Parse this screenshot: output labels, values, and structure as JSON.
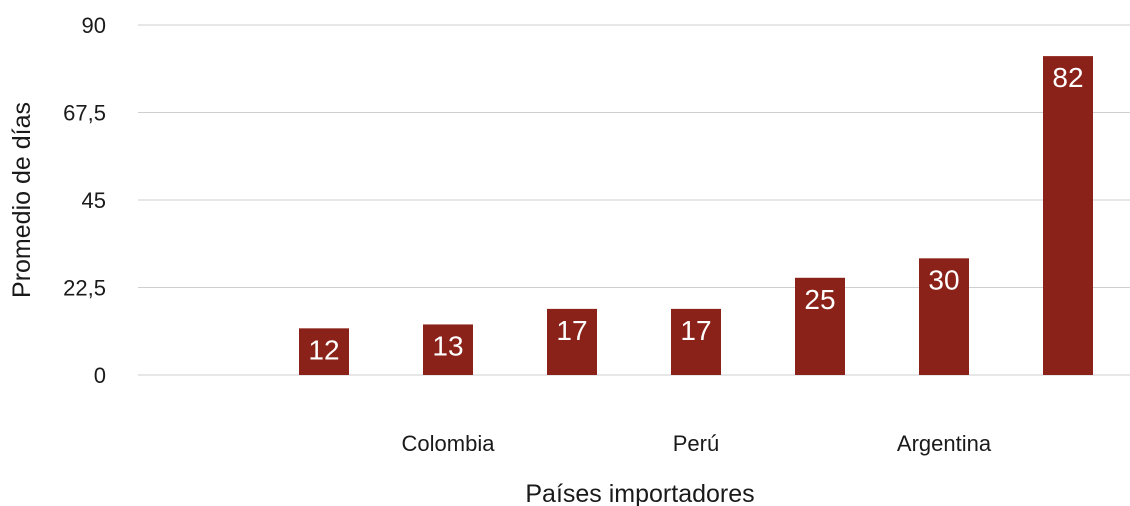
{
  "chart_data": {
    "type": "bar",
    "title": "",
    "xlabel": "Países importadores",
    "ylabel": "Promedio de días",
    "ylim": [
      0,
      90
    ],
    "yticks": [
      "0",
      "22,5",
      "45",
      "67,5",
      "90"
    ],
    "yticks_values": [
      0,
      22.5,
      45,
      67.5,
      90
    ],
    "categories": [
      "",
      "",
      "Colombia",
      "",
      "Perú",
      "",
      "Argentina",
      ""
    ],
    "values": [
      null,
      12,
      13,
      17,
      17,
      25,
      30,
      82
    ],
    "data_labels": [
      "",
      "12",
      "13",
      "17",
      "17",
      "25",
      "30",
      "82"
    ],
    "bar_color": "#8b2219",
    "grid": true,
    "legend": "none"
  }
}
